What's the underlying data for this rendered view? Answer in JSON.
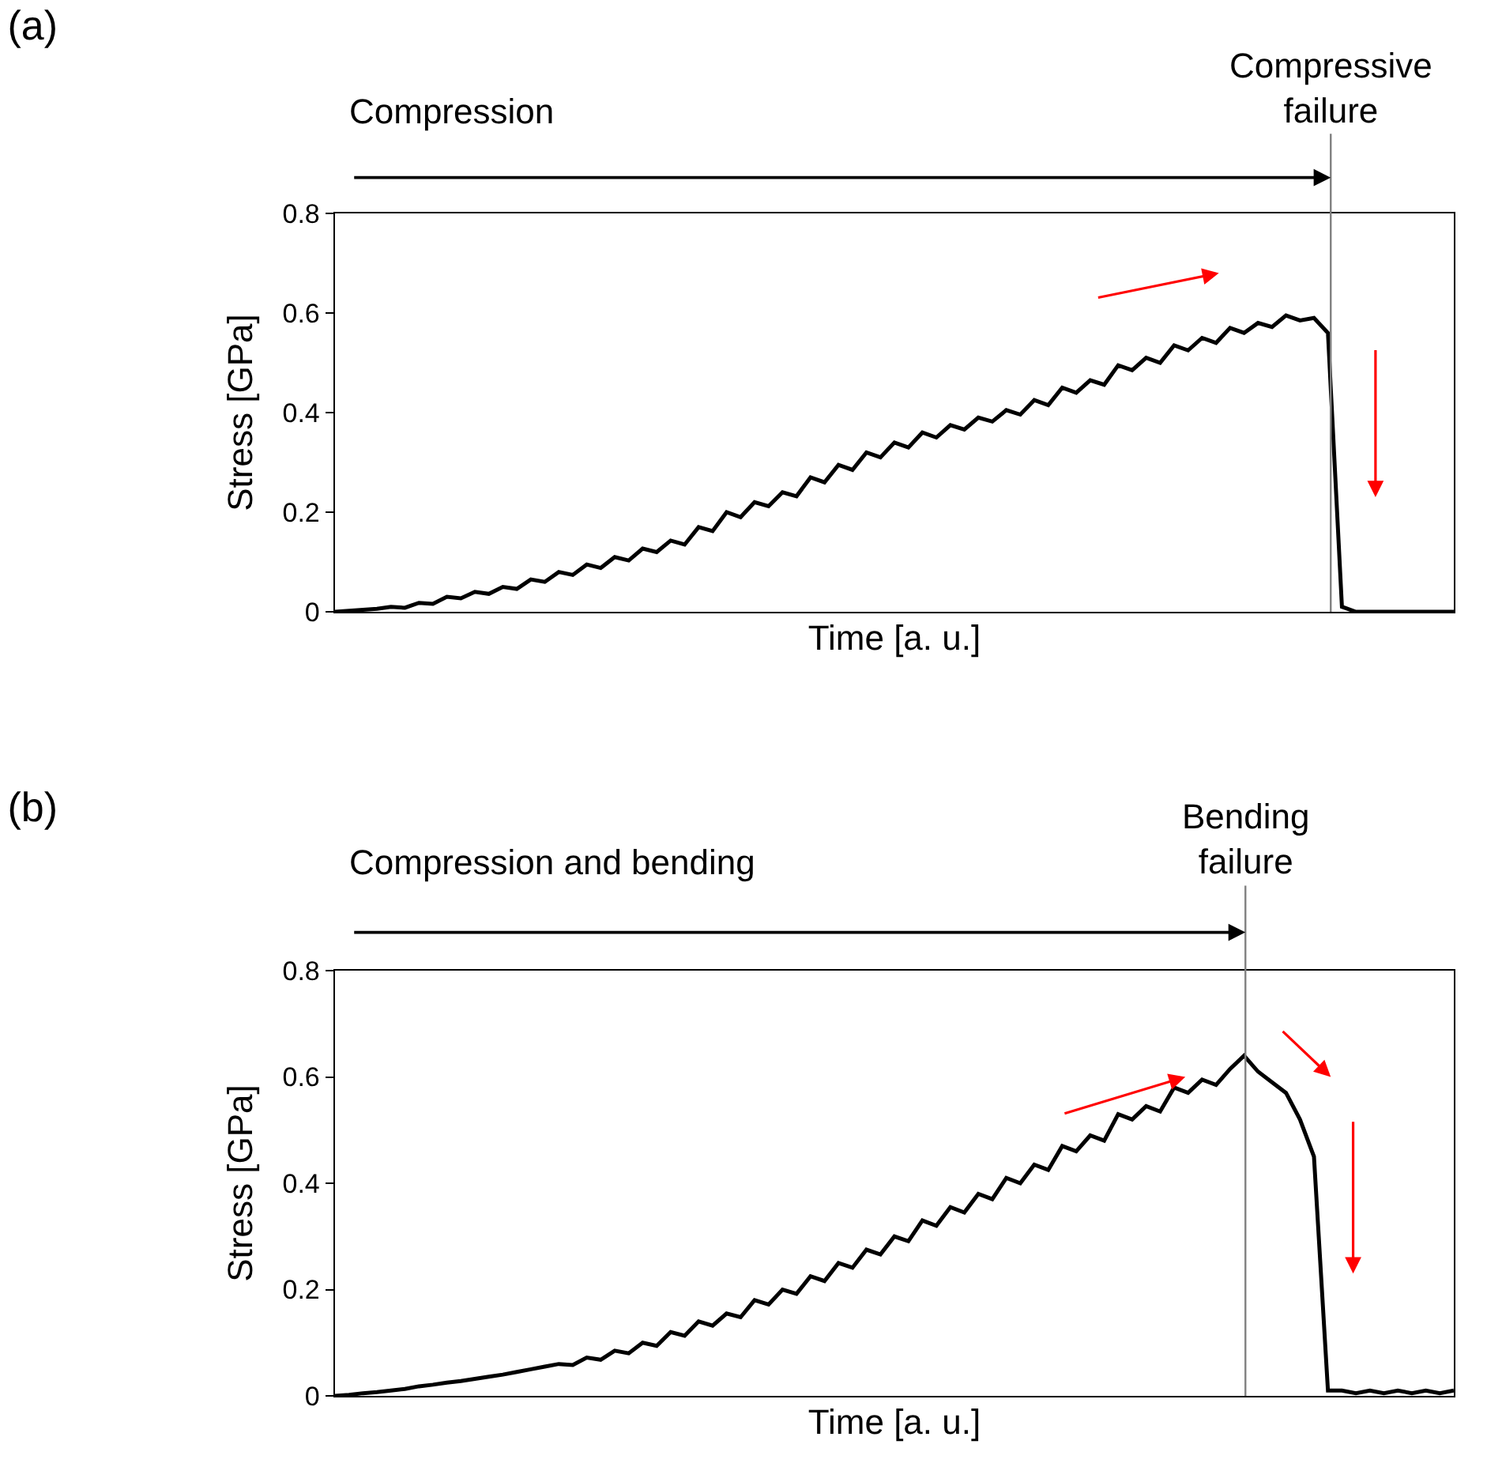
{
  "chart_data": [
    {
      "type": "line",
      "title": "(a)",
      "xlabel": "Time [a. u.]",
      "ylabel": "Stress [GPa]",
      "annotations": [
        "Compression",
        "Compressive failure"
      ],
      "categories": [
        null,
        null,
        null,
        null,
        null,
        null,
        null,
        null,
        null,
        null,
        null,
        null,
        null,
        null,
        null,
        null,
        null,
        null,
        null,
        null,
        null,
        null,
        null,
        null,
        null,
        null,
        null,
        null,
        null,
        null,
        null,
        null,
        null,
        null,
        null,
        null,
        null,
        null,
        null,
        null,
        null,
        null,
        null,
        null,
        null,
        null,
        null,
        null,
        null,
        null,
        null,
        null,
        null,
        null,
        null,
        null,
        null,
        null,
        null,
        null,
        null,
        null,
        null,
        null,
        null,
        null,
        null,
        null,
        null,
        null,
        null,
        null,
        null,
        null,
        null,
        null,
        null,
        null,
        null,
        null,
        null
      ],
      "series": [
        {
          "color": "#000000",
          "values": [
            0,
            0.002,
            0.004,
            0.006,
            0.01,
            0.008,
            0.018,
            0.016,
            0.03,
            0.027,
            0.04,
            0.036,
            0.05,
            0.046,
            0.065,
            0.06,
            0.08,
            0.074,
            0.095,
            0.088,
            0.11,
            0.103,
            0.127,
            0.12,
            0.143,
            0.135,
            0.17,
            0.162,
            0.2,
            0.19,
            0.22,
            0.212,
            0.24,
            0.232,
            0.27,
            0.26,
            0.295,
            0.285,
            0.32,
            0.31,
            0.34,
            0.33,
            0.36,
            0.35,
            0.375,
            0.366,
            0.39,
            0.382,
            0.405,
            0.396,
            0.425,
            0.415,
            0.45,
            0.44,
            0.465,
            0.456,
            0.495,
            0.485,
            0.51,
            0.5,
            0.535,
            0.525,
            0.55,
            0.54,
            0.57,
            0.56,
            0.58,
            0.572,
            0.595,
            0.585,
            0.59,
            0.56,
            0.01,
            0,
            0,
            0,
            0,
            0,
            0,
            0,
            0
          ]
        }
      ],
      "ylim": [
        0,
        0.8
      ],
      "yticks": [
        0,
        0.2,
        0.4,
        0.6,
        0.8
      ],
      "tick_labels": "y"
    },
    {
      "type": "line",
      "title": "(b)",
      "xlabel": "Time [a. u.]",
      "ylabel": "Stress [GPa]",
      "annotations": [
        "Compression and bending",
        "Bending failure"
      ],
      "categories": [
        null,
        null,
        null,
        null,
        null,
        null,
        null,
        null,
        null,
        null,
        null,
        null,
        null,
        null,
        null,
        null,
        null,
        null,
        null,
        null,
        null,
        null,
        null,
        null,
        null,
        null,
        null,
        null,
        null,
        null,
        null,
        null,
        null,
        null,
        null,
        null,
        null,
        null,
        null,
        null,
        null,
        null,
        null,
        null,
        null,
        null,
        null,
        null,
        null,
        null,
        null,
        null,
        null,
        null,
        null,
        null,
        null,
        null,
        null,
        null,
        null,
        null,
        null,
        null,
        null,
        null,
        null,
        null,
        null,
        null,
        null,
        null,
        null,
        null,
        null,
        null,
        null,
        null,
        null,
        null,
        null
      ],
      "series": [
        {
          "color": "#000000",
          "values": [
            0,
            0.002,
            0.005,
            0.007,
            0.01,
            0.013,
            0.018,
            0.021,
            0.025,
            0.028,
            0.032,
            0.036,
            0.04,
            0.045,
            0.05,
            0.055,
            0.06,
            0.058,
            0.072,
            0.068,
            0.085,
            0.08,
            0.1,
            0.094,
            0.12,
            0.113,
            0.14,
            0.132,
            0.155,
            0.148,
            0.18,
            0.172,
            0.2,
            0.192,
            0.225,
            0.216,
            0.25,
            0.241,
            0.275,
            0.266,
            0.3,
            0.291,
            0.33,
            0.32,
            0.355,
            0.345,
            0.38,
            0.37,
            0.41,
            0.4,
            0.435,
            0.425,
            0.47,
            0.46,
            0.49,
            0.48,
            0.53,
            0.52,
            0.545,
            0.535,
            0.58,
            0.57,
            0.595,
            0.585,
            0.615,
            0.64,
            0.61,
            0.59,
            0.57,
            0.52,
            0.45,
            0.01,
            0.01,
            0.005,
            0.01,
            0.005,
            0.01,
            0.005,
            0.01,
            0.005,
            0.01
          ]
        }
      ],
      "ylim": [
        0,
        0.8
      ],
      "yticks": [
        0,
        0.2,
        0.4,
        0.6,
        0.8
      ],
      "tick_labels": "y"
    }
  ]
}
